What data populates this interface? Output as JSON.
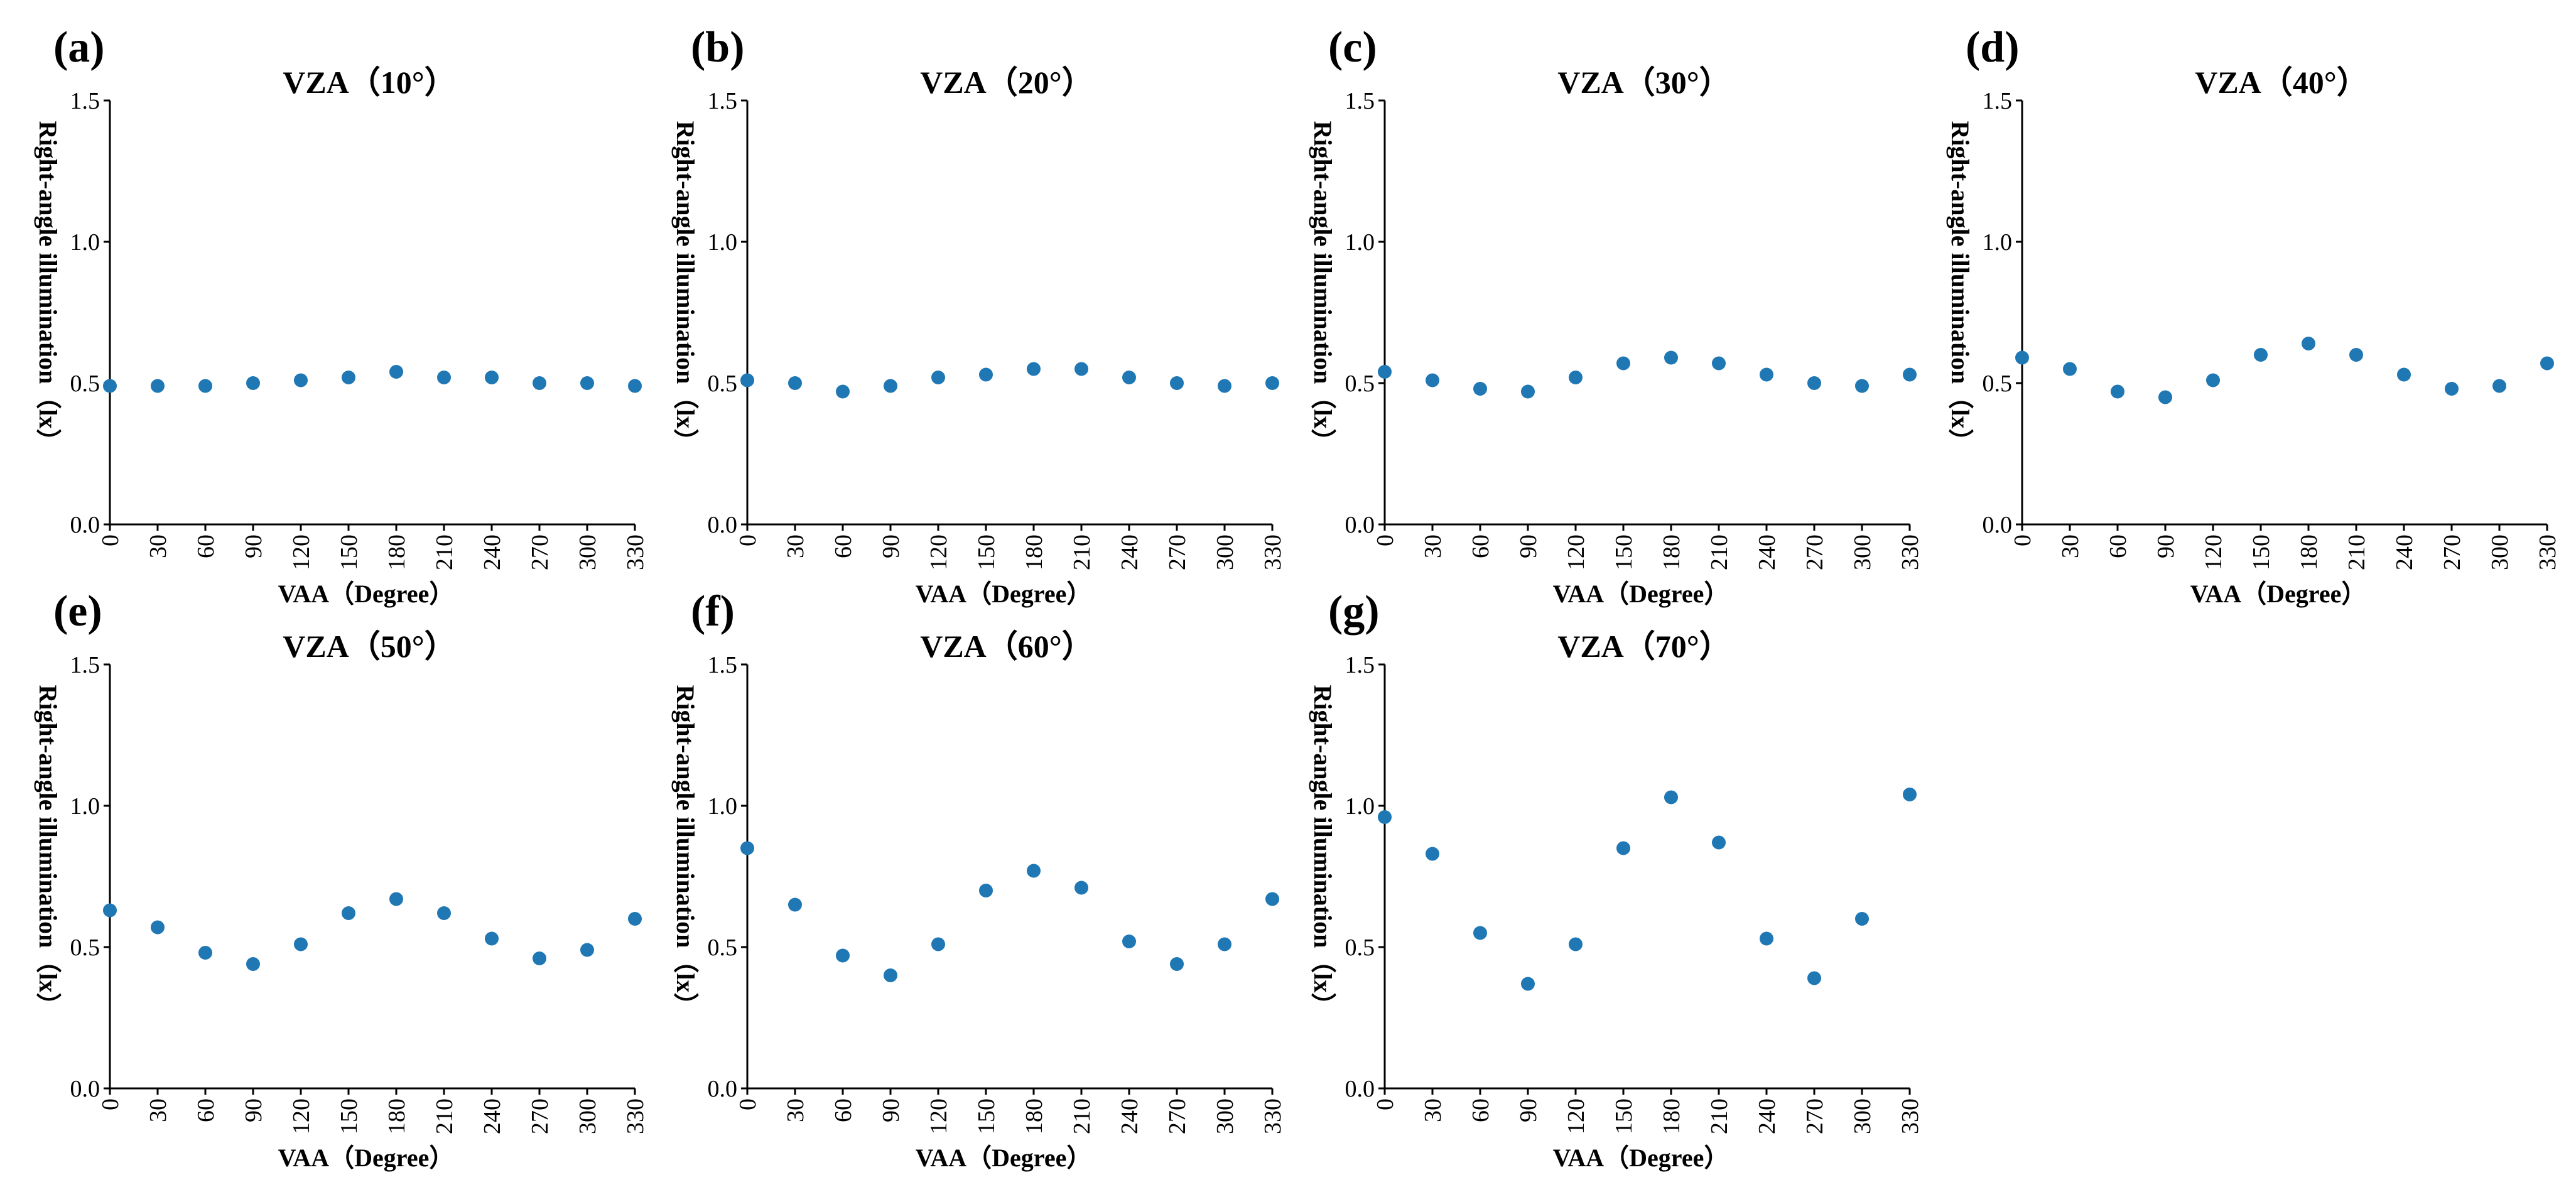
{
  "chart_data": [
    {
      "type": "scatter",
      "label": "(a)",
      "title": "VZA（10°）",
      "xlabel": "VAA（Degree）",
      "ylabel": "Right-angle illumination（lx）",
      "x": [
        0,
        30,
        60,
        90,
        120,
        150,
        180,
        210,
        240,
        270,
        300,
        330
      ],
      "y": [
        0.49,
        0.49,
        0.49,
        0.5,
        0.51,
        0.52,
        0.54,
        0.52,
        0.52,
        0.5,
        0.5,
        0.49
      ],
      "xticks": [
        "0",
        "30",
        "60",
        "90",
        "120",
        "150",
        "180",
        "210",
        "240",
        "270",
        "300",
        "330"
      ],
      "yticks": [
        "0.0",
        "0.5",
        "1.0",
        "1.5"
      ],
      "ylim": [
        0,
        1.5
      ],
      "color": "#1f77b4"
    },
    {
      "type": "scatter",
      "label": "(b)",
      "title": "VZA（20°）",
      "xlabel": "VAA（Degree）",
      "ylabel": "Right-angle illumination（lx）",
      "x": [
        0,
        30,
        60,
        90,
        120,
        150,
        180,
        210,
        240,
        270,
        300,
        330
      ],
      "y": [
        0.51,
        0.5,
        0.47,
        0.49,
        0.52,
        0.53,
        0.55,
        0.55,
        0.52,
        0.5,
        0.49,
        0.5
      ],
      "xticks": [
        "0",
        "30",
        "60",
        "90",
        "120",
        "150",
        "180",
        "210",
        "240",
        "270",
        "300",
        "330"
      ],
      "yticks": [
        "0.0",
        "0.5",
        "1.0",
        "1.5"
      ],
      "ylim": [
        0,
        1.5
      ],
      "color": "#1f77b4"
    },
    {
      "type": "scatter",
      "label": "(c)",
      "title": "VZA（30°）",
      "xlabel": "VAA（Degree）",
      "ylabel": "Right-angle illumination（lx）",
      "x": [
        0,
        30,
        60,
        90,
        120,
        150,
        180,
        210,
        240,
        270,
        300,
        330
      ],
      "y": [
        0.54,
        0.51,
        0.48,
        0.47,
        0.52,
        0.57,
        0.59,
        0.57,
        0.53,
        0.5,
        0.49,
        0.53
      ],
      "xticks": [
        "0",
        "30",
        "60",
        "90",
        "120",
        "150",
        "180",
        "210",
        "240",
        "270",
        "300",
        "330"
      ],
      "yticks": [
        "0.0",
        "0.5",
        "1.0",
        "1.5"
      ],
      "ylim": [
        0,
        1.5
      ],
      "color": "#1f77b4"
    },
    {
      "type": "scatter",
      "label": "(d)",
      "title": "VZA（40°）",
      "xlabel": "VAA（Degree）",
      "ylabel": "Right-angle illumination（lx）",
      "x": [
        0,
        30,
        60,
        90,
        120,
        150,
        180,
        210,
        240,
        270,
        300,
        330
      ],
      "y": [
        0.59,
        0.55,
        0.47,
        0.45,
        0.51,
        0.6,
        0.64,
        0.6,
        0.53,
        0.48,
        0.49,
        0.57
      ],
      "xticks": [
        "0",
        "30",
        "60",
        "90",
        "120",
        "150",
        "180",
        "210",
        "240",
        "270",
        "300",
        "330"
      ],
      "yticks": [
        "0.0",
        "0.5",
        "1.0",
        "1.5"
      ],
      "ylim": [
        0,
        1.5
      ],
      "color": "#1f77b4"
    },
    {
      "type": "scatter",
      "label": "(e)",
      "title": "VZA（50°）",
      "xlabel": "VAA（Degree）",
      "ylabel": "Right-angle illumination（lx）",
      "x": [
        0,
        30,
        60,
        90,
        120,
        150,
        180,
        210,
        240,
        270,
        300,
        330
      ],
      "y": [
        0.63,
        0.57,
        0.48,
        0.44,
        0.51,
        0.62,
        0.67,
        0.62,
        0.53,
        0.46,
        0.49,
        0.6
      ],
      "xticks": [
        "0",
        "30",
        "60",
        "90",
        "120",
        "150",
        "180",
        "210",
        "240",
        "270",
        "300",
        "330"
      ],
      "yticks": [
        "0.0",
        "0.5",
        "1.0",
        "1.5"
      ],
      "ylim": [
        0,
        1.5
      ],
      "color": "#1f77b4"
    },
    {
      "type": "scatter",
      "label": "(f)",
      "title": "VZA（60°）",
      "xlabel": "VAA（Degree）",
      "ylabel": "Right-angle illumination（lx）",
      "x": [
        0,
        30,
        60,
        90,
        120,
        150,
        180,
        210,
        240,
        270,
        300,
        330
      ],
      "y": [
        0.85,
        0.65,
        0.47,
        0.4,
        0.51,
        0.7,
        0.77,
        0.71,
        0.52,
        0.44,
        0.51,
        0.67
      ],
      "xticks": [
        "0",
        "30",
        "60",
        "90",
        "120",
        "150",
        "180",
        "210",
        "240",
        "270",
        "300",
        "330"
      ],
      "yticks": [
        "0.0",
        "0.5",
        "1.0",
        "1.5"
      ],
      "ylim": [
        0,
        1.5
      ],
      "color": "#1f77b4"
    },
    {
      "type": "scatter",
      "label": "(g)",
      "title": "VZA（70°）",
      "xlabel": "VAA（Degree）",
      "ylabel": "Right-angle illumination（lx）",
      "x": [
        0,
        30,
        60,
        90,
        120,
        150,
        180,
        210,
        240,
        270,
        300,
        330
      ],
      "y": [
        0.96,
        0.83,
        0.55,
        0.37,
        0.51,
        0.85,
        1.03,
        0.87,
        0.53,
        0.39,
        0.6,
        1.04
      ],
      "xticks": [
        "0",
        "30",
        "60",
        "90",
        "120",
        "150",
        "180",
        "210",
        "240",
        "270",
        "300",
        "330"
      ],
      "yticks": [
        "0.0",
        "0.5",
        "1.0",
        "1.5"
      ],
      "ylim": [
        0,
        1.5
      ],
      "color": "#1f77b4"
    }
  ]
}
